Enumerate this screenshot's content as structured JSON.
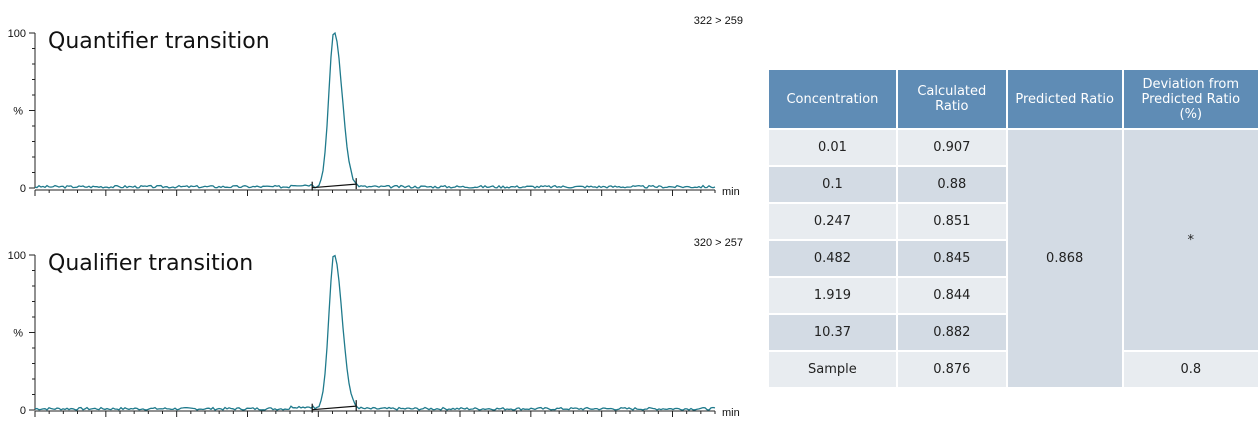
{
  "chart_data": [
    {
      "type": "line",
      "title": "Quantifier transition",
      "transition": "322 > 259",
      "ylabel": "%",
      "xlabel": "min",
      "ylim": [
        0,
        100
      ],
      "yticks": [
        "100",
        "0"
      ],
      "peak": {
        "apex_fraction": 0.44,
        "height": 100,
        "width_fraction": 0.018
      }
    },
    {
      "type": "line",
      "title": "Qualifier transition",
      "transition": "320 > 257",
      "ylabel": "%",
      "xlabel": "min",
      "ylim": [
        0,
        100
      ],
      "yticks": [
        "100",
        "0"
      ],
      "peak": {
        "apex_fraction": 0.44,
        "height": 100,
        "width_fraction": 0.018
      }
    }
  ],
  "table": {
    "headers": [
      "Concentration",
      "Calculated Ratio",
      "Predicted Ratio",
      "Deviation from Predicted Ratio (%)"
    ],
    "rows": [
      {
        "concentration": "0.01",
        "calculated": "0.907"
      },
      {
        "concentration": "0.1",
        "calculated": "0.88"
      },
      {
        "concentration": "0.247",
        "calculated": "0.851"
      },
      {
        "concentration": "0.482",
        "calculated": "0.845"
      },
      {
        "concentration": "1.919",
        "calculated": "0.844"
      },
      {
        "concentration": "10.37",
        "calculated": "0.882"
      }
    ],
    "predicted_ratio": "0.868",
    "deviation_standards": "*",
    "sample": {
      "label": "Sample",
      "calculated": "0.876",
      "deviation": "0.8"
    }
  }
}
